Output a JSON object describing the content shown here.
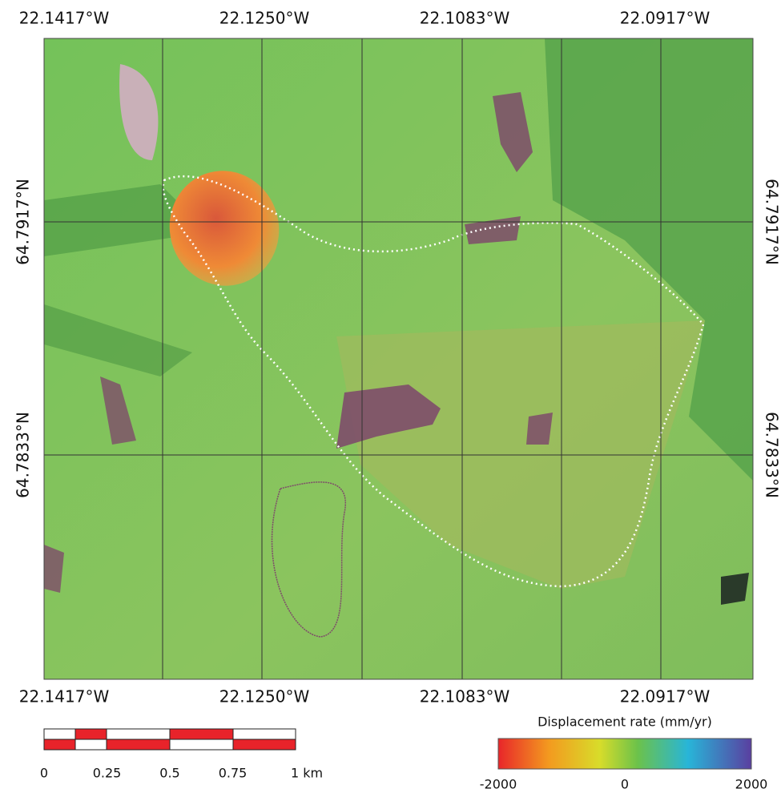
{
  "map": {
    "longitudes": [
      "22.1417°W",
      "22.1250°W",
      "22.1083°W",
      "22.0917°W"
    ],
    "latitudes": [
      "64.7917°N",
      "64.7833°N"
    ],
    "scale_bar": {
      "range": [
        0,
        1
      ],
      "labels": [
        0,
        0.25,
        0.5,
        0.75,
        {
          "value": 1,
          "label": "1 km"
        }
      ]
    },
    "colorbar": {
      "title": "Displacement rate (mm/yr)",
      "range": [
        -2000,
        2000
      ],
      "ticks": [
        -2000,
        0,
        2000
      ]
    }
  }
}
